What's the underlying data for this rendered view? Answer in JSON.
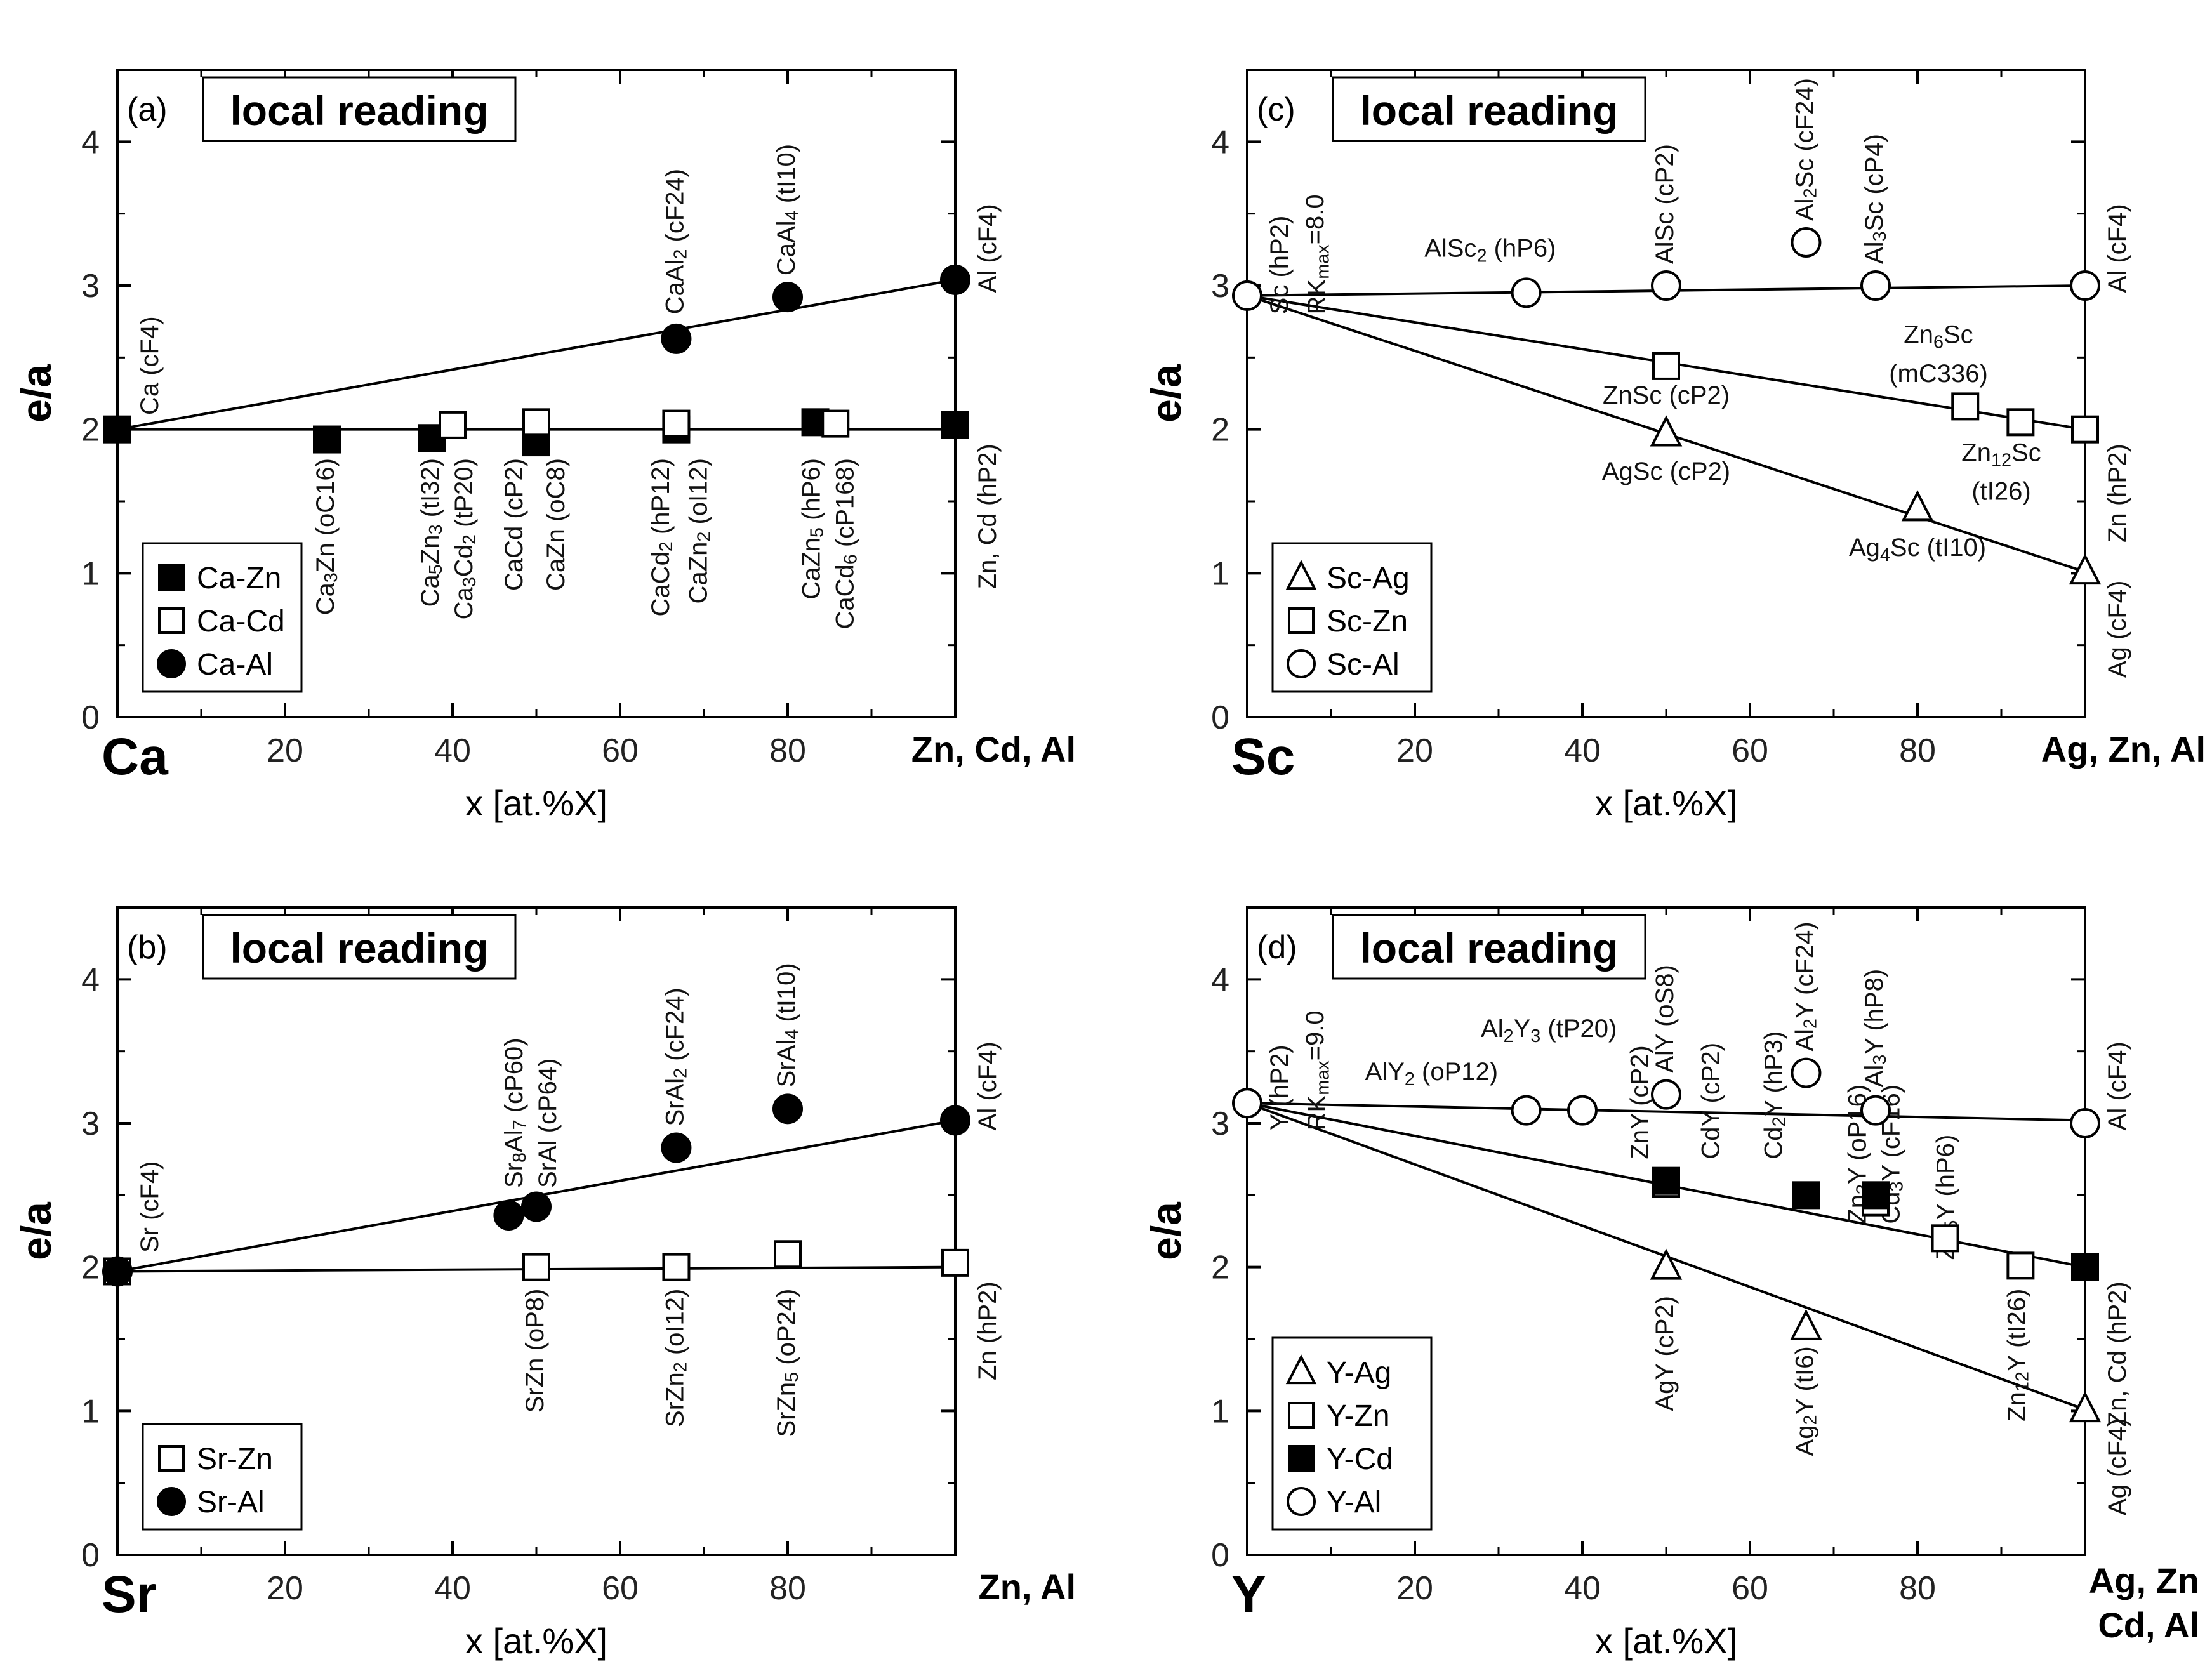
{
  "chart_data": [
    {
      "type": "scatter",
      "panel": "(a)",
      "heading": "local reading",
      "ylabel": "e/a",
      "xlabel": "x [at.%X]",
      "x_start_label": "Ca",
      "x_end_label": "Zn, Cd, Al",
      "xlim": [
        0,
        100
      ],
      "ylim": [
        0,
        4.5
      ],
      "x_ticks": [
        20,
        40,
        60,
        80
      ],
      "y_ticks": [
        0,
        1,
        2,
        3,
        4
      ],
      "legend": [
        {
          "label": "Ca-Zn",
          "marker": "square",
          "fill": "filled"
        },
        {
          "label": "Ca-Cd",
          "marker": "square",
          "fill": "open"
        },
        {
          "label": "Ca-Al",
          "marker": "circle",
          "fill": "filled"
        }
      ],
      "series": [
        {
          "name": "Ca-Zn",
          "marker": "square",
          "fill": "filled",
          "points": [
            [
              0,
              2.0
            ],
            [
              25,
              1.93
            ],
            [
              37.5,
              1.94
            ],
            [
              50,
              1.91
            ],
            [
              66.7,
              2.0
            ],
            [
              83.3,
              2.05
            ],
            [
              100,
              2.03
            ]
          ]
        },
        {
          "name": "Ca-Cd",
          "marker": "square",
          "fill": "open",
          "points": [
            [
              40,
              2.03
            ],
            [
              50,
              2.05
            ],
            [
              66.7,
              2.04
            ],
            [
              85.7,
              2.04
            ]
          ]
        },
        {
          "name": "Ca-Al",
          "marker": "circle",
          "fill": "filled",
          "points": [
            [
              66.7,
              2.63
            ],
            [
              80,
              2.92
            ],
            [
              100,
              3.04
            ]
          ]
        }
      ],
      "lines": [
        {
          "from": [
            0,
            2.0
          ],
          "to": [
            100,
            3.04
          ]
        },
        {
          "from": [
            0,
            2.0
          ],
          "to": [
            100,
            2.0
          ]
        }
      ],
      "annotations": [
        {
          "text": "Ca (cF4)",
          "x": 4,
          "y": 2.1,
          "rot": -90
        },
        {
          "text": "CaAl₂ (cF24)",
          "x": 66.7,
          "y": 2.8,
          "rot": -90
        },
        {
          "text": "CaAl₄ (tI10)",
          "x": 80,
          "y": 3.07,
          "rot": -90
        },
        {
          "text": "Al (cF4)",
          "x": 104,
          "y": 2.95,
          "rot": -90
        },
        {
          "text": "Zn, Cd (hP2)",
          "x": 104,
          "y": 1.9,
          "rot": -90
        },
        {
          "text": "Ca₃Zn (oC16)",
          "x": 25,
          "y": 1.8,
          "rot": -90
        },
        {
          "text": "Ca₅Zn₃ (tI32)",
          "x": 37.5,
          "y": 1.8,
          "rot": -90
        },
        {
          "text": "Ca₃Cd₂ (tP20)",
          "x": 41.5,
          "y": 1.8,
          "rot": -90
        },
        {
          "text": "CaCd (cP2)",
          "x": 47.5,
          "y": 1.8,
          "rot": -90
        },
        {
          "text": "CaZn (oC8)",
          "x": 52.5,
          "y": 1.8,
          "rot": -90
        },
        {
          "text": "CaCd₂ (hP12)",
          "x": 65,
          "y": 1.8,
          "rot": -90
        },
        {
          "text": "CaZn₂ (oI12)",
          "x": 69.5,
          "y": 1.8,
          "rot": -90
        },
        {
          "text": "CaZn₅ (hP6)",
          "x": 83,
          "y": 1.8,
          "rot": -90
        },
        {
          "text": "CaCd₆ (cP168)",
          "x": 87,
          "y": 1.8,
          "rot": -90
        }
      ]
    },
    {
      "type": "scatter",
      "panel": "(b)",
      "heading": "local reading",
      "ylabel": "e/a",
      "xlabel": "x [at.%X]",
      "x_start_label": "Sr",
      "x_end_label": "Zn, Al",
      "xlim": [
        0,
        100
      ],
      "ylim": [
        0,
        4.5
      ],
      "x_ticks": [
        20,
        40,
        60,
        80
      ],
      "y_ticks": [
        0,
        1,
        2,
        3,
        4
      ],
      "legend": [
        {
          "label": "Sr-Zn",
          "marker": "square",
          "fill": "open"
        },
        {
          "label": "Sr-Al",
          "marker": "circle",
          "fill": "filled"
        }
      ],
      "series": [
        {
          "name": "Sr-Zn",
          "marker": "square",
          "fill": "open",
          "points": [
            [
              0,
              1.97
            ],
            [
              50,
              2.0
            ],
            [
              66.7,
              2.0
            ],
            [
              80,
              2.09
            ],
            [
              100,
              2.03
            ]
          ]
        },
        {
          "name": "Sr-Al",
          "marker": "circle",
          "fill": "filled",
          "points": [
            [
              0,
              1.97
            ],
            [
              46.7,
              2.36
            ],
            [
              50,
              2.42
            ],
            [
              66.7,
              2.83
            ],
            [
              80,
              3.1
            ],
            [
              100,
              3.02
            ]
          ]
        }
      ],
      "lines": [
        {
          "from": [
            0,
            1.97
          ],
          "to": [
            100,
            3.02
          ]
        },
        {
          "from": [
            0,
            1.97
          ],
          "to": [
            100,
            2.0
          ]
        }
      ],
      "annotations": [
        {
          "text": "Sr (cF4)",
          "x": 4,
          "y": 2.1,
          "rot": -90
        },
        {
          "text": "Sr₈Al₇ (cP60)",
          "x": 47.5,
          "y": 2.55,
          "rot": -90
        },
        {
          "text": "SrAl (cP64)",
          "x": 51.5,
          "y": 2.55,
          "rot": -90
        },
        {
          "text": "SrAl₂ (cF24)",
          "x": 66.7,
          "y": 2.98,
          "rot": -90
        },
        {
          "text": "SrAl₄ (tI10)",
          "x": 80,
          "y": 3.25,
          "rot": -90
        },
        {
          "text": "Al (cF4)",
          "x": 104,
          "y": 2.95,
          "rot": -90
        },
        {
          "text": "Zn (hP2)",
          "x": 104,
          "y": 1.9,
          "rot": -90
        },
        {
          "text": "SrZn (oP8)",
          "x": 50,
          "y": 1.85,
          "rot": -90
        },
        {
          "text": "SrZn₂ (oI12)",
          "x": 66.7,
          "y": 1.85,
          "rot": -90
        },
        {
          "text": "SrZn₅ (oP24)",
          "x": 80,
          "y": 1.85,
          "rot": -90
        }
      ]
    },
    {
      "type": "scatter",
      "panel": "(c)",
      "heading": "local reading",
      "ylabel": "e/a",
      "xlabel": "x [at.%X]",
      "x_start_label": "Sc",
      "x_end_label": "Ag, Zn, Al",
      "xlim": [
        0,
        100
      ],
      "ylim": [
        0,
        4.5
      ],
      "x_ticks": [
        20,
        40,
        60,
        80
      ],
      "y_ticks": [
        0,
        1,
        2,
        3,
        4
      ],
      "legend": [
        {
          "label": "Sc-Ag",
          "marker": "triangle",
          "fill": "open"
        },
        {
          "label": "Sc-Zn",
          "marker": "square",
          "fill": "open"
        },
        {
          "label": "Sc-Al",
          "marker": "circle",
          "fill": "open"
        }
      ],
      "series": [
        {
          "name": "Sc-Ag",
          "marker": "triangle",
          "fill": "open",
          "points": [
            [
              50,
              1.97
            ],
            [
              80,
              1.45
            ],
            [
              100,
              1.01
            ]
          ]
        },
        {
          "name": "Sc-Zn",
          "marker": "square",
          "fill": "open",
          "points": [
            [
              50,
              2.44
            ],
            [
              85.7,
              2.16
            ],
            [
              92.3,
              2.05
            ],
            [
              100,
              2.0
            ]
          ]
        },
        {
          "name": "Sc-Al",
          "marker": "circle",
          "fill": "open",
          "points": [
            [
              0,
              2.93
            ],
            [
              33.3,
              2.95
            ],
            [
              50,
              3.0
            ],
            [
              66.7,
              3.3
            ],
            [
              75,
              3.0
            ],
            [
              100,
              3.0
            ]
          ]
        }
      ],
      "lines": [
        {
          "from": [
            0,
            2.93
          ],
          "to": [
            100,
            3.0
          ]
        },
        {
          "from": [
            0,
            2.93
          ],
          "to": [
            100,
            2.0
          ]
        },
        {
          "from": [
            0,
            2.93
          ],
          "to": [
            100,
            1.01
          ]
        }
      ],
      "annotations": [
        {
          "text": "Sc (hP2)",
          "x": 4,
          "y": 2.8,
          "rot": -90
        },
        {
          "text": "RKmax=8.0",
          "x": 8.5,
          "y": 2.8,
          "rot": -90
        },
        {
          "text": "AlSc₂ (hP6)",
          "x": 29,
          "y": 3.2,
          "rot": 0
        },
        {
          "text": "AlSc (cP2)",
          "x": 50,
          "y": 3.15,
          "rot": -90
        },
        {
          "text": "Al₂Sc (cF24)",
          "x": 66.7,
          "y": 3.45,
          "rot": -90
        },
        {
          "text": "Al₃Sc (cP4)",
          "x": 75,
          "y": 3.15,
          "rot": -90
        },
        {
          "text": "Al (cF4)",
          "x": 104,
          "y": 2.95,
          "rot": -90
        },
        {
          "text": "Zn (hP2)",
          "x": 104,
          "y": 1.9,
          "rot": -90
        },
        {
          "text": "Ag (cF4)",
          "x": 104,
          "y": 0.95,
          "rot": -90
        },
        {
          "text": "ZnSc (cP2)",
          "x": 50,
          "y": 2.18,
          "rot": 0
        },
        {
          "text": "Zn₆Sc",
          "x": 82.5,
          "y": 2.6,
          "rot": 0
        },
        {
          "text": "(mC336)",
          "x": 82.5,
          "y": 2.33,
          "rot": 0
        },
        {
          "text": "Zn₁₂Sc",
          "x": 90,
          "y": 1.78,
          "rot": 0
        },
        {
          "text": "(tI26)",
          "x": 90,
          "y": 1.51,
          "rot": 0
        },
        {
          "text": "AgSc (cP2)",
          "x": 50,
          "y": 1.65,
          "rot": 0
        },
        {
          "text": "Ag₄Sc (tI10)",
          "x": 80,
          "y": 1.12,
          "rot": 0
        }
      ]
    },
    {
      "type": "scatter",
      "panel": "(d)",
      "heading": "local reading",
      "ylabel": "e/a",
      "xlabel": "x [at.%X]",
      "x_start_label": "Y",
      "x_end_label": "Ag, Zn",
      "x_end_label2": "Cd, Al",
      "xlim": [
        0,
        100
      ],
      "ylim": [
        0,
        4.5
      ],
      "x_ticks": [
        20,
        40,
        60,
        80
      ],
      "y_ticks": [
        0,
        1,
        2,
        3,
        4
      ],
      "legend": [
        {
          "label": "Y-Ag",
          "marker": "triangle",
          "fill": "open"
        },
        {
          "label": "Y-Zn",
          "marker": "square",
          "fill": "open"
        },
        {
          "label": "Y-Cd",
          "marker": "square",
          "fill": "filled"
        },
        {
          "label": "Y-Al",
          "marker": "circle",
          "fill": "open"
        }
      ],
      "series": [
        {
          "name": "Y-Ag",
          "marker": "triangle",
          "fill": "open",
          "points": [
            [
              50,
              2.0
            ],
            [
              66.7,
              1.58
            ],
            [
              100,
              1.01
            ]
          ]
        },
        {
          "name": "Y-Zn",
          "marker": "square",
          "fill": "open",
          "points": [
            [
              50,
              2.58
            ],
            [
              75,
              2.45
            ],
            [
              83.3,
              2.2
            ],
            [
              92.3,
              2.01
            ],
            [
              100,
              2.0
            ]
          ]
        },
        {
          "name": "Y-Cd",
          "marker": "square",
          "fill": "filled",
          "points": [
            [
              50,
              2.6
            ],
            [
              66.7,
              2.5
            ],
            [
              75,
              2.5
            ],
            [
              100,
              2.0
            ]
          ]
        },
        {
          "name": "Y-Al",
          "marker": "circle",
          "fill": "open",
          "points": [
            [
              0,
              3.14
            ],
            [
              33.3,
              3.09
            ],
            [
              40,
              3.09
            ],
            [
              50,
              3.2
            ],
            [
              66.7,
              3.35
            ],
            [
              75,
              3.09
            ],
            [
              100,
              3.0
            ]
          ]
        }
      ],
      "lines": [
        {
          "from": [
            0,
            3.14
          ],
          "to": [
            100,
            3.02
          ]
        },
        {
          "from": [
            0,
            3.14
          ],
          "to": [
            100,
            2.0
          ]
        },
        {
          "from": [
            0,
            3.14
          ],
          "to": [
            100,
            1.01
          ]
        }
      ],
      "annotations": [
        {
          "text": "Y (hP2)",
          "x": 4,
          "y": 2.95,
          "rot": -90
        },
        {
          "text": "RKmax=9.0",
          "x": 8.5,
          "y": 2.95,
          "rot": -90
        },
        {
          "text": "AlY₂ (oP12)",
          "x": 22,
          "y": 3.3,
          "rot": 0
        },
        {
          "text": "Al₂Y₃ (tP20)",
          "x": 36,
          "y": 3.6,
          "rot": 0
        },
        {
          "text": "AlY (oS8)",
          "x": 50,
          "y": 3.35,
          "rot": -90
        },
        {
          "text": "Al₂Y (cF24)",
          "x": 66.7,
          "y": 3.5,
          "rot": -90
        },
        {
          "text": "Al₃Y (hP8)",
          "x": 75,
          "y": 3.25,
          "rot": -90
        },
        {
          "text": "Al (cF4)",
          "x": 104,
          "y": 2.95,
          "rot": -90
        },
        {
          "text": "Zn, Cd (hP2)",
          "x": 104,
          "y": 1.9,
          "rot": -90
        },
        {
          "text": "Ag (cF4)",
          "x": 104,
          "y": 0.95,
          "rot": -90
        },
        {
          "text": "ZnY (cP2)",
          "x": 47,
          "y": 2.75,
          "rot": -90
        },
        {
          "text": "CdY (cP2)",
          "x": 55.5,
          "y": 2.75,
          "rot": -90
        },
        {
          "text": "Cd₂Y (hP3)",
          "x": 63,
          "y": 2.75,
          "rot": -90
        },
        {
          "text": "AgY (cP2)",
          "x": 50,
          "y": 1.8,
          "rot": -90
        },
        {
          "text": "Ag₂Y (tI6)",
          "x": 66.7,
          "y": 1.45,
          "rot": -90
        },
        {
          "text": "Zn₃Y (oP16)",
          "x": 73,
          "y": 2.3,
          "rot": -90
        },
        {
          "text": "Cd₃Y (cF16)",
          "x": 77,
          "y": 2.3,
          "rot": -90
        },
        {
          "text": "Zn₅Y (hP6)",
          "x": 83.5,
          "y": 2.05,
          "rot": -90
        },
        {
          "text": "Zn₁₂Y (tI26)",
          "x": 92,
          "y": 1.85,
          "rot": -90
        }
      ]
    }
  ]
}
